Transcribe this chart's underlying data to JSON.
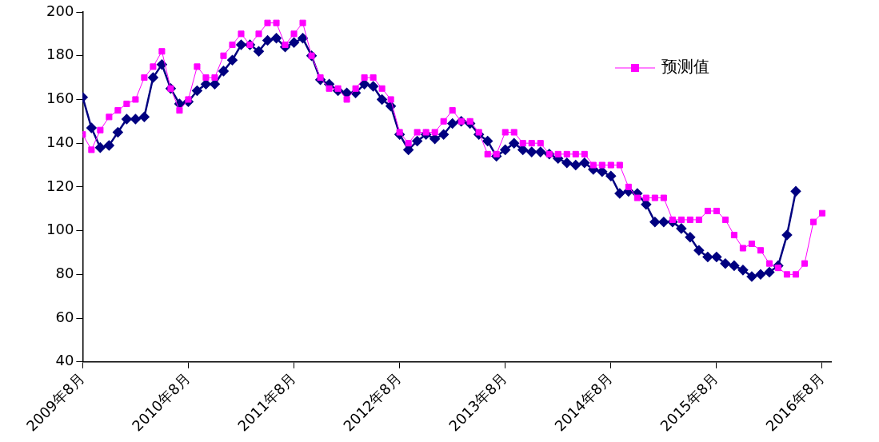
{
  "chart_data": {
    "type": "line",
    "x": [
      "2009-08",
      "2009-09",
      "2009-10",
      "2009-11",
      "2009-12",
      "2010-01",
      "2010-02",
      "2010-03",
      "2010-04",
      "2010-05",
      "2010-06",
      "2010-07",
      "2010-08",
      "2010-09",
      "2010-10",
      "2010-11",
      "2010-12",
      "2011-01",
      "2011-02",
      "2011-03",
      "2011-04",
      "2011-05",
      "2011-06",
      "2011-07",
      "2011-08",
      "2011-09",
      "2011-10",
      "2011-11",
      "2011-12",
      "2012-01",
      "2012-02",
      "2012-03",
      "2012-04",
      "2012-05",
      "2012-06",
      "2012-07",
      "2012-08",
      "2012-09",
      "2012-10",
      "2012-11",
      "2012-12",
      "2013-01",
      "2013-02",
      "2013-03",
      "2013-04",
      "2013-05",
      "2013-06",
      "2013-07",
      "2013-08",
      "2013-09",
      "2013-10",
      "2013-11",
      "2013-12",
      "2014-01",
      "2014-02",
      "2014-03",
      "2014-04",
      "2014-05",
      "2014-06",
      "2014-07",
      "2014-08",
      "2014-09",
      "2014-10",
      "2014-11",
      "2014-12",
      "2015-01",
      "2015-02",
      "2015-03",
      "2015-04",
      "2015-05",
      "2015-06",
      "2015-07",
      "2015-08",
      "2015-09",
      "2015-10",
      "2015-11",
      "2015-12",
      "2016-01",
      "2016-02",
      "2016-03",
      "2016-04",
      "2016-05",
      "2016-06",
      "2016-07",
      "2016-08"
    ],
    "series": [
      {
        "color": "#000080",
        "marker": "diamond",
        "values": [
          161,
          147,
          138,
          139,
          145,
          151,
          151,
          152,
          170,
          176,
          165,
          158,
          159,
          164,
          167,
          167,
          173,
          178,
          185,
          185,
          182,
          187,
          188,
          184,
          186,
          188,
          180,
          169,
          167,
          164,
          163,
          163,
          167,
          166,
          160,
          157,
          144,
          137,
          141,
          144,
          142,
          144,
          149,
          150,
          149,
          144,
          141,
          134,
          137,
          140,
          137,
          136,
          136,
          135,
          133,
          131,
          130,
          131,
          128,
          127,
          125,
          117,
          118,
          117,
          112,
          104,
          104,
          104,
          101,
          97,
          91,
          88,
          88,
          85,
          84,
          82,
          79,
          80,
          81,
          84,
          98,
          118,
          null,
          null,
          null
        ]
      },
      {
        "name": "预测值",
        "color": "#ff00ff",
        "marker": "square",
        "values": [
          144,
          137,
          146,
          152,
          155,
          158,
          160,
          170,
          175,
          182,
          165,
          155,
          160,
          175,
          170,
          170,
          180,
          185,
          190,
          185,
          190,
          195,
          195,
          185,
          190,
          195,
          180,
          170,
          165,
          165,
          160,
          165,
          170,
          170,
          165,
          160,
          145,
          140,
          145,
          145,
          145,
          150,
          155,
          150,
          150,
          145,
          135,
          135,
          145,
          145,
          140,
          140,
          140,
          135,
          135,
          135,
          135,
          135,
          130,
          130,
          130,
          130,
          120,
          115,
          115,
          115,
          115,
          105,
          105,
          105,
          105,
          109,
          109,
          105,
          98,
          92,
          94,
          91,
          85,
          83,
          80,
          80,
          85,
          104,
          108
        ]
      }
    ],
    "xlim": [
      "2009-08",
      "2016-09"
    ],
    "xticks": [
      {
        "value": "2009-08",
        "label": "2009年8月"
      },
      {
        "value": "2010-08",
        "label": "2010年8月"
      },
      {
        "value": "2011-08",
        "label": "2011年8月"
      },
      {
        "value": "2012-08",
        "label": "2012年8月"
      },
      {
        "value": "2013-08",
        "label": "2013年8月"
      },
      {
        "value": "2014-08",
        "label": "2014年8月"
      },
      {
        "value": "2015-08",
        "label": "2015年8月"
      },
      {
        "value": "2016-08",
        "label": "2016年8月"
      }
    ],
    "ylim": [
      40,
      200
    ],
    "yticks": [
      40,
      60,
      80,
      100,
      120,
      140,
      160,
      180,
      200
    ],
    "grid": false,
    "legend": "top right"
  }
}
